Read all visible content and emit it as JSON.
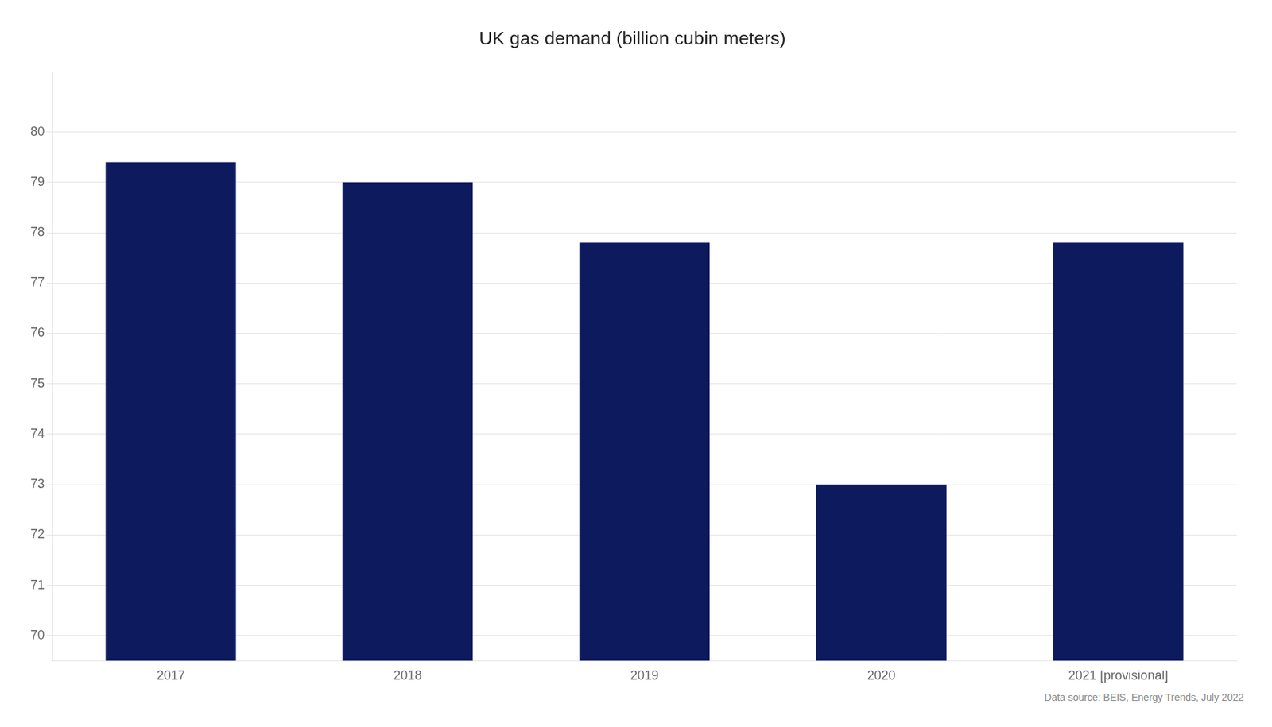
{
  "chart_data": {
    "type": "bar",
    "title": "UK gas demand (billion cubin meters)",
    "categories": [
      "2017",
      "2018",
      "2019",
      "2020",
      "2021 [provisional]"
    ],
    "values": [
      79.4,
      79.0,
      77.8,
      73.0,
      77.8
    ],
    "color": "#0d1a5e",
    "ylim": [
      69.5,
      81.2
    ],
    "yticks": [
      70,
      71,
      72,
      73,
      74,
      75,
      76,
      77,
      78,
      79,
      80
    ],
    "grid": true,
    "annotation": "Data source: BEIS, Energy Trends, July 2022"
  }
}
